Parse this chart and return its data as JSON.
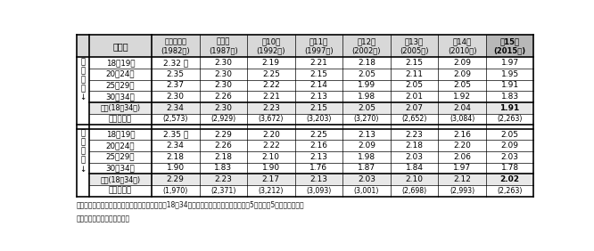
{
  "col_headers_line1": [
    "第８回調査",
    "第９回",
    "第10回",
    "第11回",
    "第12回",
    "第13回",
    "第14回",
    "第15回"
  ],
  "col_headers_line2": [
    "(1982年)",
    "(1987年)",
    "(1992年)",
    "(1997年)",
    "(2002年)",
    "(2005年)",
    "(2010年)",
    "(2015年)"
  ],
  "age_col_header": "年　齢",
  "male_label": [
    "未",
    "婚",
    "男",
    "性",
    "↓"
  ],
  "female_label": [
    "未",
    "婚",
    "女",
    "性",
    "↓"
  ],
  "male_rows": [
    {
      "age": "18～19歳",
      "values": [
        "2.32 人",
        "2.30",
        "2.19",
        "2.21",
        "2.18",
        "2.15",
        "2.09",
        "1.97"
      ],
      "bold": false,
      "paren": false
    },
    {
      "age": "20～24歳",
      "values": [
        "2.35",
        "2.30",
        "2.25",
        "2.15",
        "2.05",
        "2.11",
        "2.09",
        "1.95"
      ],
      "bold": false,
      "paren": false
    },
    {
      "age": "25～29歳",
      "values": [
        "2.37",
        "2.30",
        "2.22",
        "2.14",
        "1.99",
        "2.05",
        "2.05",
        "1.91"
      ],
      "bold": false,
      "paren": false
    },
    {
      "age": "30～34歳",
      "values": [
        "2.30",
        "2.26",
        "2.21",
        "2.13",
        "1.98",
        "2.01",
        "1.92",
        "1.83"
      ],
      "bold": false,
      "paren": false
    },
    {
      "age": "総数(18～34歳)",
      "values": [
        "2.34",
        "2.30",
        "2.23",
        "2.15",
        "2.05",
        "2.07",
        "2.04",
        "1.91"
      ],
      "bold": true,
      "paren": false
    },
    {
      "age": "（客体数）",
      "values": [
        "(2,573)",
        "(2,929)",
        "(3,672)",
        "(3,203)",
        "(3,270)",
        "(2,652)",
        "(3,084)",
        "(2,263)"
      ],
      "bold": false,
      "paren": true
    }
  ],
  "female_rows": [
    {
      "age": "18～19歳",
      "values": [
        "2.35 人",
        "2.29",
        "2.20",
        "2.25",
        "2.13",
        "2.23",
        "2.16",
        "2.05"
      ],
      "bold": false,
      "paren": false
    },
    {
      "age": "20～24歳",
      "values": [
        "2.34",
        "2.26",
        "2.22",
        "2.16",
        "2.09",
        "2.18",
        "2.20",
        "2.09"
      ],
      "bold": false,
      "paren": false
    },
    {
      "age": "25～29歳",
      "values": [
        "2.18",
        "2.18",
        "2.10",
        "2.13",
        "1.98",
        "2.03",
        "2.06",
        "2.03"
      ],
      "bold": false,
      "paren": false
    },
    {
      "age": "30～34歳",
      "values": [
        "1.90",
        "1.83",
        "1.90",
        "1.76",
        "1.87",
        "1.84",
        "1.97",
        "1.78"
      ],
      "bold": false,
      "paren": false
    },
    {
      "age": "総数(18～34歳)",
      "values": [
        "2.29",
        "2.23",
        "2.17",
        "2.13",
        "2.03",
        "2.10",
        "2.12",
        "2.02"
      ],
      "bold": true,
      "paren": false
    },
    {
      "age": "（客体数）",
      "values": [
        "(1,970)",
        "(2,371)",
        "(3,212)",
        "(3,093)",
        "(3,001)",
        "(2,698)",
        "(2,993)",
        "(2,263)"
      ],
      "bold": false,
      "paren": true
    }
  ],
  "note_line1": "注：対象は「いずれ結婚するつもり」と回答した18～34歳の未婚者。平均希望子ども数は5人以上を5として算出。希",
  "note_line2": "　　望子ども数不詳を除く。",
  "bg_color": "#ffffff",
  "header_bg": "#d8d8d8",
  "border_color": "#000000",
  "total_row_bg": "#e8e8e8",
  "last_col_header_bg": "#b8b8b8"
}
